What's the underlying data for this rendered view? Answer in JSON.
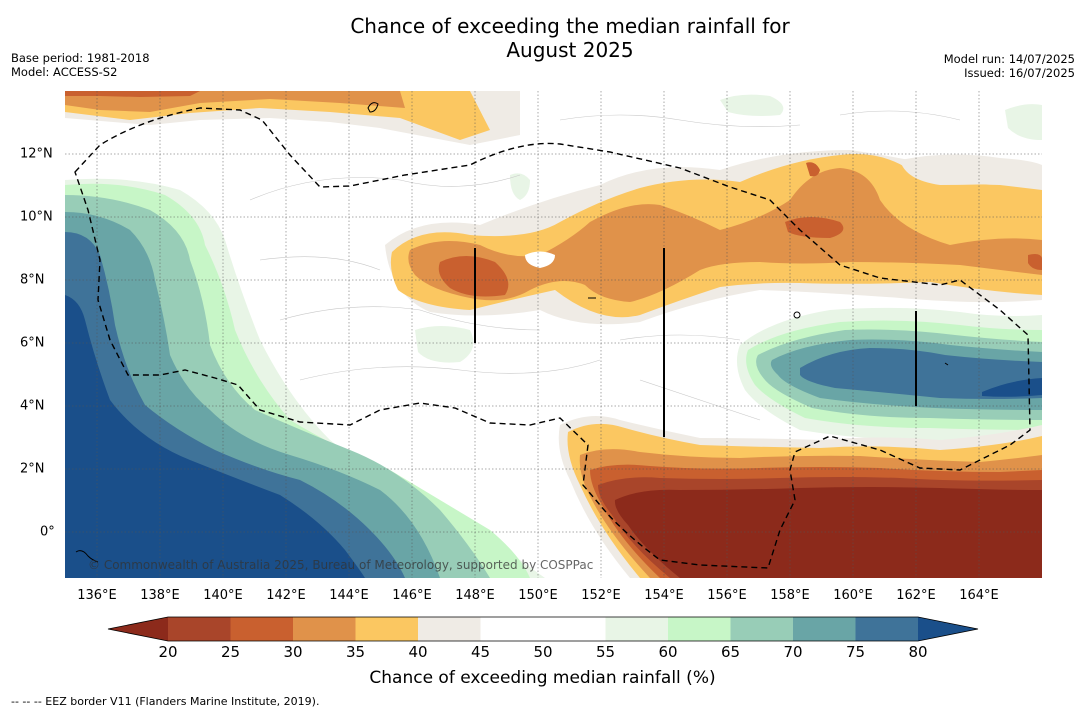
{
  "title_line1": "Chance of exceeding the median rainfall for",
  "title_line2": "August 2025",
  "base_period": "Base period: 1981-2018",
  "model": "Model: ACCESS-S2",
  "model_run": "Model run: 14/07/2025",
  "issued": "Issued: 16/07/2025",
  "credit": "© Commonwealth of Australia 2025, Bureau of Meteorology, supported by COSPPac",
  "x_ticks": [
    "136°E",
    "138°E",
    "140°E",
    "142°E",
    "144°E",
    "146°E",
    "148°E",
    "150°E",
    "152°E",
    "154°E",
    "156°E",
    "158°E",
    "160°E",
    "162°E",
    "164°E"
  ],
  "y_ticks": [
    "12°N",
    "10°N",
    "8°N",
    "6°N",
    "4°N",
    "2°N",
    "0°"
  ],
  "colorbar": {
    "ticks": [
      "20",
      "25",
      "30",
      "35",
      "40",
      "45",
      "50",
      "55",
      "60",
      "65",
      "70",
      "75",
      "80"
    ],
    "colors": {
      "under": "#8c2a1b",
      "c20_25": "#a9452a",
      "c25_30": "#c9602f",
      "c30_35": "#e0924a",
      "c35_40": "#fbc761",
      "c40_45": "#efebe5",
      "c45_50": "#ffffff",
      "c50_55": "#ffffff",
      "c55_60": "#e8f5e6",
      "c60_65": "#c7f6c7",
      "c65_70": "#98cdb7",
      "c70_75": "#69a5a6",
      "c75_80": "#3f7399",
      "over": "#1a4f8a"
    },
    "label": "Chance of exceeding median rainfall (%)"
  },
  "footnote": "--  --  -- EEZ border V11 (Flanders Marine Institute, 2019)."
}
